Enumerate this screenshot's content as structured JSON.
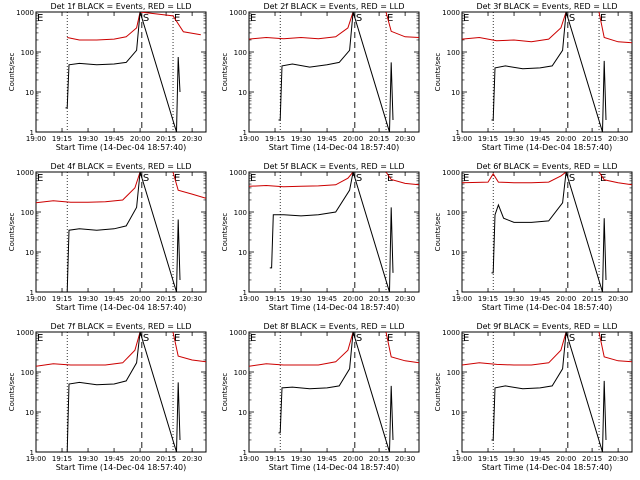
{
  "figure": {
    "xlabel": "Start Time (14-Dec-04 18:57:40)",
    "ylabel": "Counts/sec",
    "x_ticks": [
      "19:00",
      "19:15",
      "19:30",
      "19:45",
      "20:00",
      "20:15",
      "20:30"
    ],
    "y_ticks": [
      "1",
      "10",
      "100",
      "1000"
    ],
    "markers": {
      "S": "S",
      "E": "E"
    }
  },
  "chart_data": [
    {
      "type": "line",
      "title": "Det 1f BLACK = Events, RED = LLD",
      "xlabel": "Start Time (14-Dec-04 18:57:40)",
      "ylabel": "Counts/sec",
      "yscale": "log",
      "x_range": [
        "19:00",
        "20:38"
      ],
      "ylim": [
        1,
        1000
      ],
      "x_ticks": [
        "19:00",
        "19:15",
        "19:30",
        "19:45",
        "20:00",
        "20:15",
        "20:30"
      ],
      "y_ticks": [
        1,
        10,
        100,
        1000
      ],
      "markers": [
        {
          "label": "E",
          "time": "19:00",
          "style": "text"
        },
        {
          "label": "",
          "time": "19:18",
          "style": "dotted"
        },
        {
          "label": "S",
          "time": "20:01",
          "style": "dashed"
        },
        {
          "label": "E",
          "time": "20:19",
          "style": "dotted"
        }
      ],
      "series": [
        {
          "color": "#cc0000",
          "x": [
            "19:18",
            "19:25",
            "19:35",
            "19:45",
            "19:52",
            "19:58",
            "20:00",
            "20:19",
            "20:25",
            "20:35"
          ],
          "y": [
            230,
            200,
            200,
            210,
            240,
            400,
            1000,
            800,
            320,
            270
          ]
        },
        {
          "color": "#000000",
          "x": [
            "19:17",
            "19:18",
            "19:19",
            "19:25",
            "19:35",
            "19:45",
            "19:52",
            "19:58",
            "20:00",
            "20:21",
            "20:22",
            "20:23"
          ],
          "y": [
            4,
            4,
            48,
            52,
            48,
            50,
            55,
            110,
            1000,
            1,
            75,
            10
          ]
        }
      ]
    },
    {
      "type": "line",
      "title": "Det 2f BLACK = Events, RED = LLD",
      "xlabel": "Start Time (14-Dec-04 18:57:40)",
      "ylabel": "Counts/sec",
      "yscale": "log",
      "x_range": [
        "19:00",
        "20:38"
      ],
      "ylim": [
        1,
        1000
      ],
      "x_ticks": [
        "19:00",
        "19:15",
        "19:30",
        "19:45",
        "20:00",
        "20:15",
        "20:30"
      ],
      "y_ticks": [
        1,
        10,
        100,
        1000
      ],
      "markers": [
        {
          "label": "E",
          "time": "19:00",
          "style": "text"
        },
        {
          "label": "",
          "time": "19:18",
          "style": "dotted"
        },
        {
          "label": "S",
          "time": "20:01",
          "style": "dashed"
        },
        {
          "label": "E",
          "time": "20:19",
          "style": "dotted"
        }
      ],
      "series": [
        {
          "color": "#cc0000",
          "x": [
            "19:00",
            "19:10",
            "19:20",
            "19:30",
            "19:40",
            "19:50",
            "19:57",
            "20:00",
            "20:19",
            "20:22",
            "20:30",
            "20:38"
          ],
          "y": [
            210,
            230,
            215,
            230,
            215,
            240,
            400,
            1000,
            1000,
            330,
            240,
            230
          ]
        },
        {
          "color": "#000000",
          "x": [
            "19:17",
            "19:18",
            "19:19",
            "19:25",
            "19:35",
            "19:45",
            "19:52",
            "19:58",
            "20:00",
            "20:21",
            "20:22",
            "20:23"
          ],
          "y": [
            2,
            2,
            45,
            50,
            42,
            48,
            55,
            110,
            1000,
            1,
            55,
            2
          ]
        }
      ]
    },
    {
      "type": "line",
      "title": "Det 3f BLACK = Events, RED = LLD",
      "xlabel": "Start Time (14-Dec-04 18:57:40)",
      "ylabel": "Counts/sec",
      "yscale": "log",
      "x_range": [
        "19:00",
        "20:38"
      ],
      "ylim": [
        1,
        1000
      ],
      "x_ticks": [
        "19:00",
        "19:15",
        "19:30",
        "19:45",
        "20:00",
        "20:15",
        "20:30"
      ],
      "y_ticks": [
        1,
        10,
        100,
        1000
      ],
      "markers": [
        {
          "label": "E",
          "time": "19:00",
          "style": "text"
        },
        {
          "label": "",
          "time": "19:18",
          "style": "dotted"
        },
        {
          "label": "S",
          "time": "20:01",
          "style": "dashed"
        },
        {
          "label": "E",
          "time": "20:19",
          "style": "dotted"
        }
      ],
      "series": [
        {
          "color": "#cc0000",
          "x": [
            "19:00",
            "19:10",
            "19:20",
            "19:30",
            "19:40",
            "19:50",
            "19:57",
            "20:00",
            "20:19",
            "20:22",
            "20:30",
            "20:38"
          ],
          "y": [
            210,
            230,
            190,
            200,
            180,
            210,
            400,
            1000,
            1000,
            230,
            180,
            170
          ]
        },
        {
          "color": "#000000",
          "x": [
            "19:17",
            "19:18",
            "19:19",
            "19:25",
            "19:35",
            "19:45",
            "19:52",
            "19:58",
            "20:00",
            "20:21",
            "20:22",
            "20:23"
          ],
          "y": [
            2,
            2,
            40,
            45,
            38,
            40,
            45,
            110,
            1000,
            1,
            60,
            2
          ]
        }
      ]
    },
    {
      "type": "line",
      "title": "Det 4f BLACK = Events, RED = LLD",
      "xlabel": "Start Time (14-Dec-04 18:57:40)",
      "ylabel": "Counts/sec",
      "yscale": "log",
      "x_range": [
        "19:00",
        "20:38"
      ],
      "ylim": [
        1,
        1000
      ],
      "x_ticks": [
        "19:00",
        "19:15",
        "19:30",
        "19:45",
        "20:00",
        "20:15",
        "20:30"
      ],
      "y_ticks": [
        1,
        10,
        100,
        1000
      ],
      "markers": [
        {
          "label": "E",
          "time": "19:00",
          "style": "text"
        },
        {
          "label": "",
          "time": "19:18",
          "style": "dotted"
        },
        {
          "label": "S",
          "time": "20:01",
          "style": "dashed"
        },
        {
          "label": "E",
          "time": "20:19",
          "style": "dotted"
        }
      ],
      "series": [
        {
          "color": "#cc0000",
          "x": [
            "19:00",
            "19:10",
            "19:20",
            "19:30",
            "19:40",
            "19:50",
            "19:57",
            "20:00",
            "20:19",
            "20:22",
            "20:30",
            "20:38"
          ],
          "y": [
            170,
            190,
            175,
            175,
            180,
            200,
            400,
            1000,
            1000,
            350,
            280,
            220
          ]
        },
        {
          "color": "#000000",
          "x": [
            "19:17",
            "19:18",
            "19:19",
            "19:25",
            "19:35",
            "19:45",
            "19:52",
            "19:58",
            "20:00",
            "20:21",
            "20:22",
            "20:23"
          ],
          "y": [
            1,
            1,
            35,
            38,
            35,
            38,
            45,
            130,
            1000,
            1,
            65,
            2
          ]
        }
      ]
    },
    {
      "type": "line",
      "title": "Det 5f BLACK = Events, RED = LLD",
      "xlabel": "Start Time (14-Dec-04 18:57:40)",
      "ylabel": "Counts/sec",
      "yscale": "log",
      "x_range": [
        "19:00",
        "20:38"
      ],
      "ylim": [
        1,
        1000
      ],
      "x_ticks": [
        "19:00",
        "19:15",
        "19:30",
        "19:45",
        "20:00",
        "20:15",
        "20:30"
      ],
      "y_ticks": [
        1,
        10,
        100,
        1000
      ],
      "markers": [
        {
          "label": "E",
          "time": "19:00",
          "style": "text"
        },
        {
          "label": "",
          "time": "19:18",
          "style": "dotted"
        },
        {
          "label": "S",
          "time": "20:01",
          "style": "dashed"
        },
        {
          "label": "E",
          "time": "20:19",
          "style": "dotted"
        }
      ],
      "series": [
        {
          "color": "#cc0000",
          "x": [
            "19:00",
            "19:10",
            "19:20",
            "19:30",
            "19:40",
            "19:50",
            "19:57",
            "20:00",
            "20:19",
            "20:22",
            "20:30",
            "20:38"
          ],
          "y": [
            440,
            460,
            430,
            440,
            450,
            480,
            700,
            1000,
            1000,
            650,
            520,
            480
          ]
        },
        {
          "color": "#000000",
          "x": [
            "19:12",
            "19:13",
            "19:14",
            "19:20",
            "19:30",
            "19:40",
            "19:50",
            "19:58",
            "20:00",
            "20:21",
            "20:22",
            "20:23"
          ],
          "y": [
            4,
            4,
            85,
            85,
            80,
            85,
            100,
            350,
            1000,
            1,
            130,
            3
          ]
        }
      ]
    },
    {
      "type": "line",
      "title": "Det 6f BLACK = Events, RED = LLD",
      "xlabel": "Start Time (14-Dec-04 18:57:40)",
      "ylabel": "Counts/sec",
      "yscale": "log",
      "x_range": [
        "19:00",
        "20:38"
      ],
      "ylim": [
        1,
        1000
      ],
      "x_ticks": [
        "19:00",
        "19:15",
        "19:30",
        "19:45",
        "20:00",
        "20:15",
        "20:30"
      ],
      "y_ticks": [
        1,
        10,
        100,
        1000
      ],
      "markers": [
        {
          "label": "E",
          "time": "19:00",
          "style": "text"
        },
        {
          "label": "",
          "time": "19:18",
          "style": "dotted"
        },
        {
          "label": "S",
          "time": "20:01",
          "style": "dashed"
        },
        {
          "label": "E",
          "time": "20:19",
          "style": "dotted"
        }
      ],
      "series": [
        {
          "color": "#cc0000",
          "x": [
            "19:00",
            "19:15",
            "19:18",
            "19:21",
            "19:30",
            "19:40",
            "19:50",
            "19:57",
            "20:00",
            "20:19",
            "20:22",
            "20:30",
            "20:38"
          ],
          "y": [
            540,
            560,
            900,
            560,
            540,
            540,
            560,
            800,
            1000,
            1000,
            640,
            540,
            480
          ]
        },
        {
          "color": "#000000",
          "x": [
            "19:17",
            "19:18",
            "19:19",
            "19:21",
            "19:24",
            "19:30",
            "19:40",
            "19:50",
            "19:58",
            "20:00",
            "20:21",
            "20:22",
            "20:23"
          ],
          "y": [
            3,
            3,
            85,
            150,
            70,
            55,
            55,
            60,
            170,
            1000,
            1,
            70,
            2
          ]
        }
      ]
    },
    {
      "type": "line",
      "title": "Det 7f BLACK = Events, RED = LLD",
      "xlabel": "Start Time (14-Dec-04 18:57:40)",
      "ylabel": "Counts/sec",
      "yscale": "log",
      "x_range": [
        "19:00",
        "20:38"
      ],
      "ylim": [
        1,
        1000
      ],
      "x_ticks": [
        "19:00",
        "19:15",
        "19:30",
        "19:45",
        "20:00",
        "20:15",
        "20:30"
      ],
      "y_ticks": [
        1,
        10,
        100,
        1000
      ],
      "markers": [
        {
          "label": "E",
          "time": "19:00",
          "style": "text"
        },
        {
          "label": "",
          "time": "19:18",
          "style": "dotted"
        },
        {
          "label": "S",
          "time": "20:01",
          "style": "dashed"
        },
        {
          "label": "E",
          "time": "20:19",
          "style": "dotted"
        }
      ],
      "series": [
        {
          "color": "#cc0000",
          "x": [
            "19:00",
            "19:10",
            "19:20",
            "19:30",
            "19:40",
            "19:50",
            "19:57",
            "20:00",
            "20:19",
            "20:22",
            "20:30",
            "20:38"
          ],
          "y": [
            140,
            160,
            150,
            150,
            150,
            170,
            350,
            1000,
            1000,
            250,
            200,
            180
          ]
        },
        {
          "color": "#000000",
          "x": [
            "19:17",
            "19:18",
            "19:19",
            "19:25",
            "19:35",
            "19:45",
            "19:52",
            "19:58",
            "20:00",
            "20:21",
            "20:22",
            "20:23"
          ],
          "y": [
            1,
            1,
            50,
            55,
            48,
            50,
            60,
            170,
            1000,
            1,
            55,
            2
          ]
        }
      ]
    },
    {
      "type": "line",
      "title": "Det 8f BLACK = Events, RED = LLD",
      "xlabel": "Start Time (14-Dec-04 18:57:40)",
      "ylabel": "Counts/sec",
      "yscale": "log",
      "x_range": [
        "19:00",
        "20:38"
      ],
      "ylim": [
        1,
        1000
      ],
      "x_ticks": [
        "19:00",
        "19:15",
        "19:30",
        "19:45",
        "20:00",
        "20:15",
        "20:30"
      ],
      "y_ticks": [
        1,
        10,
        100,
        1000
      ],
      "markers": [
        {
          "label": "E",
          "time": "19:00",
          "style": "text"
        },
        {
          "label": "",
          "time": "19:18",
          "style": "dotted"
        },
        {
          "label": "S",
          "time": "20:01",
          "style": "dashed"
        },
        {
          "label": "E",
          "time": "20:19",
          "style": "dotted"
        }
      ],
      "series": [
        {
          "color": "#cc0000",
          "x": [
            "19:00",
            "19:10",
            "19:20",
            "19:30",
            "19:40",
            "19:50",
            "19:57",
            "20:00",
            "20:19",
            "20:22",
            "20:30",
            "20:38"
          ],
          "y": [
            140,
            160,
            150,
            150,
            150,
            180,
            350,
            1000,
            1000,
            240,
            190,
            170
          ]
        },
        {
          "color": "#000000",
          "x": [
            "19:17",
            "19:18",
            "19:19",
            "19:25",
            "19:35",
            "19:45",
            "19:52",
            "19:58",
            "20:00",
            "20:21",
            "20:22",
            "20:23"
          ],
          "y": [
            3,
            3,
            40,
            42,
            38,
            40,
            45,
            120,
            1000,
            1,
            45,
            2
          ]
        }
      ]
    },
    {
      "type": "line",
      "title": "Det 9f BLACK = Events, RED = LLD",
      "xlabel": "Start Time (14-Dec-04 18:57:40)",
      "ylabel": "Counts/sec",
      "yscale": "log",
      "x_range": [
        "19:00",
        "20:38"
      ],
      "ylim": [
        1,
        1000
      ],
      "x_ticks": [
        "19:00",
        "19:15",
        "19:30",
        "19:45",
        "20:00",
        "20:15",
        "20:30"
      ],
      "y_ticks": [
        1,
        10,
        100,
        1000
      ],
      "markers": [
        {
          "label": "E",
          "time": "19:00",
          "style": "text"
        },
        {
          "label": "",
          "time": "19:18",
          "style": "dotted"
        },
        {
          "label": "S",
          "time": "20:01",
          "style": "dashed"
        },
        {
          "label": "E",
          "time": "20:19",
          "style": "dotted"
        }
      ],
      "series": [
        {
          "color": "#cc0000",
          "x": [
            "19:00",
            "19:10",
            "19:20",
            "19:30",
            "19:40",
            "19:50",
            "19:57",
            "20:00",
            "20:19",
            "20:22",
            "20:30",
            "20:38"
          ],
          "y": [
            150,
            170,
            155,
            150,
            150,
            170,
            350,
            1000,
            1000,
            240,
            190,
            180
          ]
        },
        {
          "color": "#000000",
          "x": [
            "19:17",
            "19:18",
            "19:19",
            "19:25",
            "19:35",
            "19:45",
            "19:52",
            "19:58",
            "20:00",
            "20:21",
            "20:22",
            "20:23"
          ],
          "y": [
            2,
            2,
            40,
            45,
            38,
            40,
            45,
            120,
            1000,
            1,
            60,
            2
          ]
        }
      ]
    }
  ]
}
